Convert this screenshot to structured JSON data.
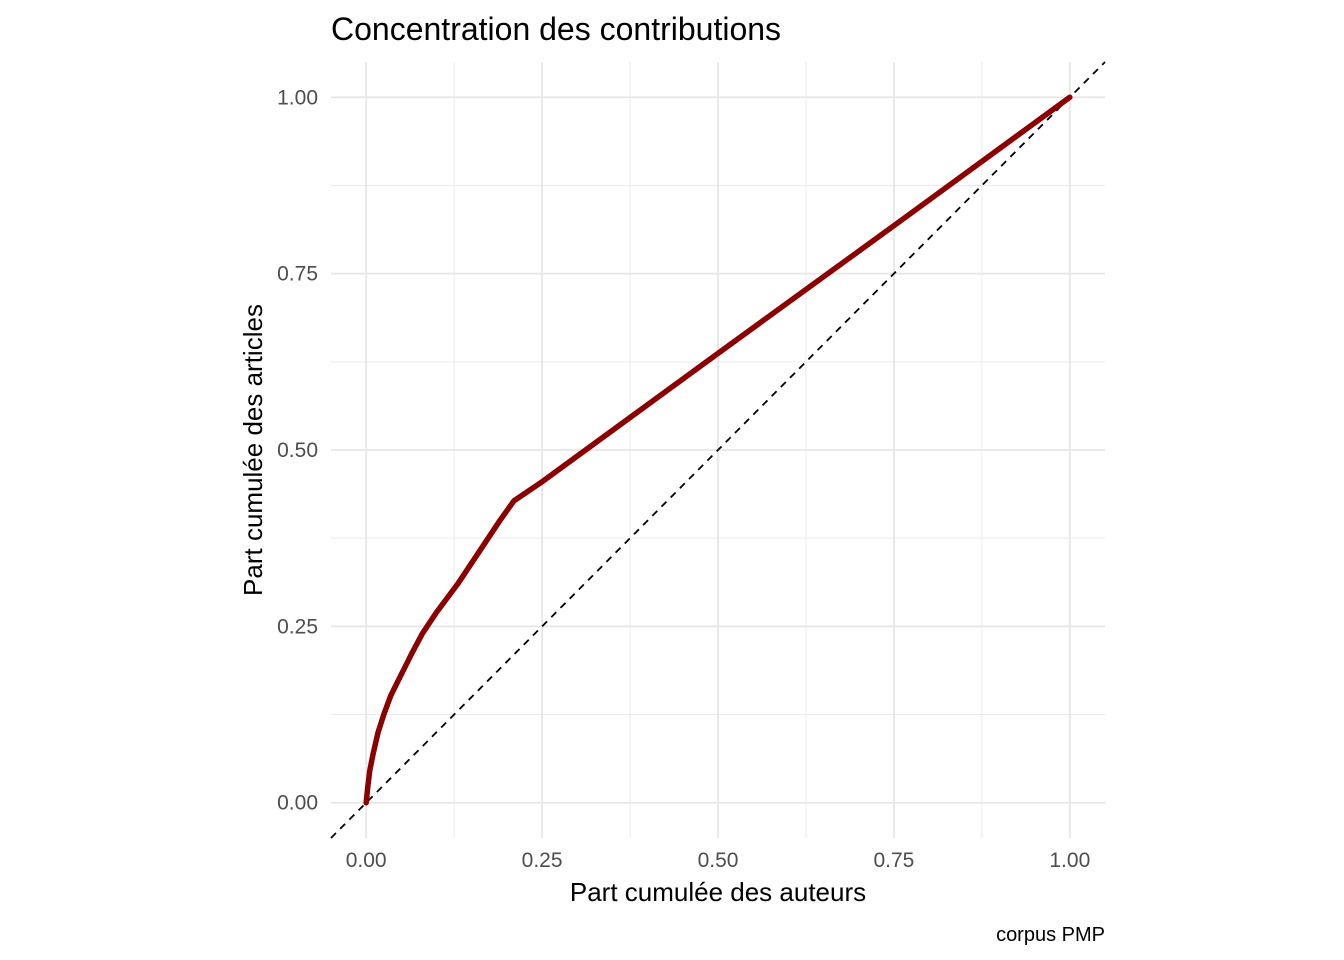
{
  "chart_data": {
    "type": "line",
    "title": "Concentration des contributions",
    "xlabel": "Part cumulée des auteurs",
    "ylabel": "Part cumulée des articles",
    "caption": "corpus PMP",
    "xlim": [
      -0.05,
      1.05
    ],
    "ylim": [
      -0.05,
      1.05
    ],
    "x_ticks": [
      0,
      0.25,
      0.5,
      0.75,
      1
    ],
    "y_ticks": [
      0,
      0.25,
      0.5,
      0.75,
      1
    ],
    "x_tick_labels": [
      "0.00",
      "0.25",
      "0.50",
      "0.75",
      "1.00"
    ],
    "y_tick_labels": [
      "0.00",
      "0.25",
      "0.50",
      "0.75",
      "1.00"
    ],
    "grid": true,
    "series": [
      {
        "color": "#8b0000",
        "points": [
          [
            0,
            0
          ],
          [
            0.002,
            0.02
          ],
          [
            0.005,
            0.045
          ],
          [
            0.01,
            0.07
          ],
          [
            0.017,
            0.1
          ],
          [
            0.025,
            0.125
          ],
          [
            0.035,
            0.152
          ],
          [
            0.05,
            0.182
          ],
          [
            0.065,
            0.212
          ],
          [
            0.08,
            0.24
          ],
          [
            0.1,
            0.27
          ],
          [
            0.13,
            0.31
          ],
          [
            0.16,
            0.355
          ],
          [
            0.19,
            0.4
          ],
          [
            0.21,
            0.428
          ],
          [
            0.25,
            0.455
          ],
          [
            0.5,
            0.637
          ],
          [
            0.75,
            0.818
          ],
          [
            1,
            1
          ]
        ]
      }
    ],
    "reference_line": {
      "slope": 1,
      "intercept": 0,
      "style": "dashed",
      "color": "#000000"
    }
  }
}
